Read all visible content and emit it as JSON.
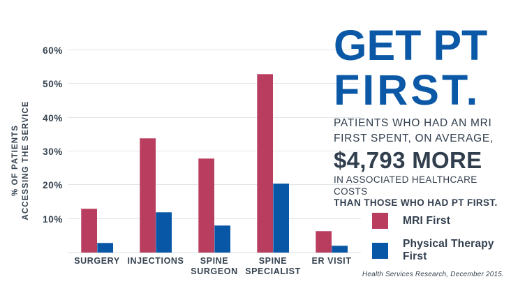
{
  "colors": {
    "mri_red": "#B83D5F",
    "pt_blue": "#0857A6",
    "headline_blue": "#0B58A6",
    "text_navy": "#313E4D",
    "gridline_gray": "#E4E5E8",
    "background": "#FFFFFF"
  },
  "chart_data": {
    "type": "bar",
    "title": "",
    "xlabel": "",
    "ylabel": "% OF PATIENTS\nACCESSING THE SERVICE",
    "ylim": [
      0,
      60
    ],
    "grid": true,
    "legend_position": "right-bottom",
    "categories": [
      "SURGERY",
      "INJECTIONS",
      "SPINE\nSURGEON",
      "SPINE\nSPECIALIST",
      "ER VISIT"
    ],
    "yticks": [
      {
        "value": 10,
        "label": "10%"
      },
      {
        "value": 20,
        "label": "20%"
      },
      {
        "value": 30,
        "label": "30%"
      },
      {
        "value": 40,
        "label": "40%"
      },
      {
        "value": 50,
        "label": "50%"
      },
      {
        "value": 60,
        "label": "60%"
      }
    ],
    "series": [
      {
        "name": "MRI First",
        "color": "#B83D5F",
        "values": [
          13,
          34,
          28,
          53,
          6.5
        ]
      },
      {
        "name": "Physical Therapy First",
        "color": "#0857A6",
        "values": [
          3,
          12,
          8,
          20.5,
          2
        ]
      }
    ],
    "legend": [
      {
        "label": "MRI First",
        "color": "#B83D5F"
      },
      {
        "label": "Physical Therapy\nFirst",
        "color": "#0857A6"
      }
    ]
  },
  "headline": {
    "line1": "GET PT",
    "line2": "FIRST."
  },
  "subtext": {
    "line1": "PATIENTS WHO HAD AN MRI",
    "line2": "FIRST SPENT, ON AVERAGE,",
    "highlight": "$4,793 MORE",
    "line3": "IN ASSOCIATED HEALTHCARE COSTS",
    "line4": "THAN THOSE WHO HAD PT FIRST."
  },
  "source": "Health Services Research, December 2015."
}
